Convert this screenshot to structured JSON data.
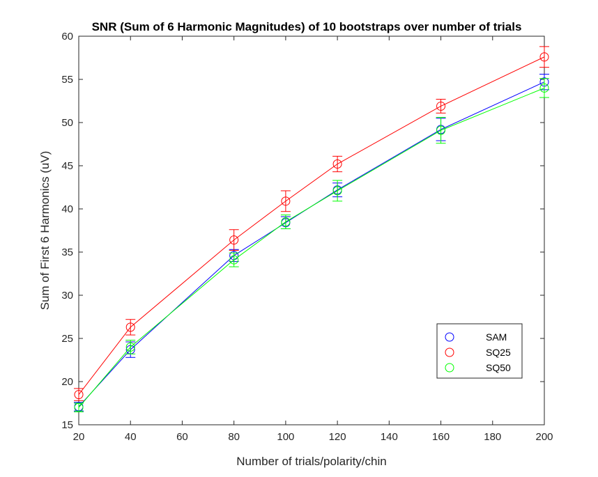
{
  "chart_data": {
    "type": "line",
    "title": "SNR (Sum of 6 Harmonic Magnitudes) of 10 bootstraps over number of trials",
    "xlabel": "Number of trials/polarity/chin",
    "ylabel": "Sum of First 6 Harmonics (uV)",
    "xlim": [
      20,
      200
    ],
    "ylim": [
      15,
      60
    ],
    "xticks": [
      "20",
      "40",
      "60",
      "80",
      "100",
      "120",
      "140",
      "160",
      "180",
      "200"
    ],
    "yticks": [
      "15",
      "20",
      "25",
      "30",
      "35",
      "40",
      "45",
      "50",
      "55",
      "60"
    ],
    "grid": false,
    "legend_position": "bottom-right",
    "x": [
      20,
      40,
      80,
      100,
      120,
      160,
      200
    ],
    "series": [
      {
        "name": "SAM",
        "color": "#0000ff",
        "values": [
          17.1,
          23.7,
          34.6,
          38.4,
          42.2,
          49.2,
          54.7
        ],
        "error": [
          0.5,
          0.9,
          0.7,
          0.7,
          0.8,
          1.3,
          0.9
        ]
      },
      {
        "name": "SQ25",
        "color": "#ff0000",
        "values": [
          18.5,
          26.3,
          36.4,
          40.9,
          45.2,
          51.9,
          57.6
        ],
        "error": [
          0.7,
          0.9,
          1.2,
          1.2,
          0.9,
          0.8,
          1.2
        ]
      },
      {
        "name": "SQ50",
        "color": "#00ff00",
        "values": [
          17.0,
          24.0,
          34.1,
          38.5,
          42.1,
          49.1,
          54.0
        ],
        "error": [
          0.5,
          0.8,
          0.8,
          0.8,
          1.2,
          1.5,
          1.1
        ]
      }
    ]
  }
}
